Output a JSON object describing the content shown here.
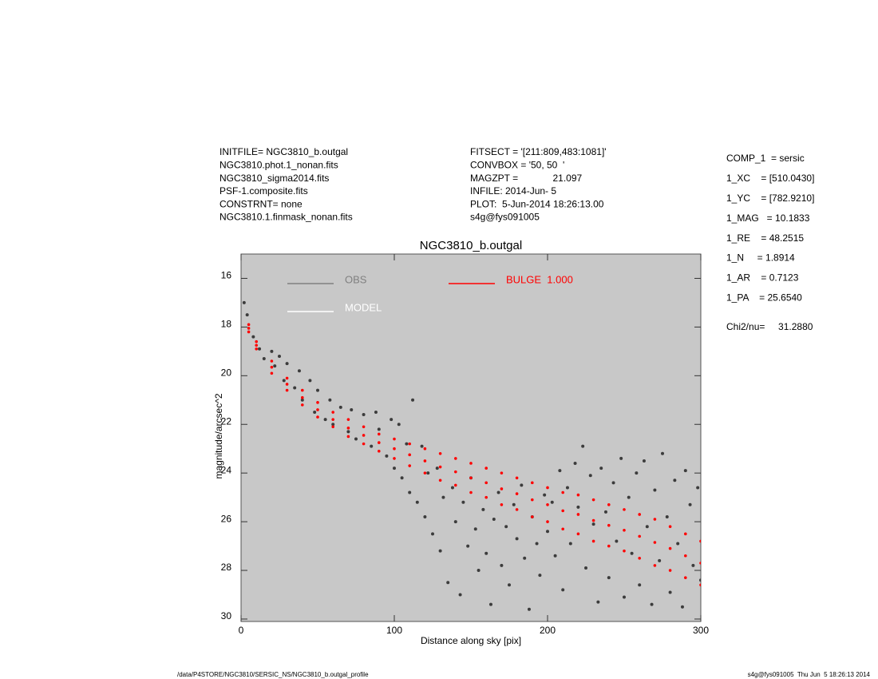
{
  "header": {
    "left": [
      "INITFILE= NGC3810_b.outgal",
      "NGC3810.phot.1_nonan.fits",
      "NGC3810_sigma2014.fits",
      "PSF-1.composite.fits",
      "CONSTRNT= none",
      "NGC3810.1.finmask_nonan.fits"
    ],
    "middle": [
      "FITSECT = '[211:809,483:1081]'",
      "CONVBOX = '50, 50  '",
      "MAGZPT =             21.097",
      "INFILE: 2014-Jun- 5",
      "PLOT:  5-Jun-2014 18:26:13.00",
      "s4g@fys091005"
    ]
  },
  "params": [
    "COMP_1  = sersic",
    "1_XC    = [510.0430]",
    "1_YC    = [782.9210]",
    "1_MAG   = 10.1833",
    "1_RE    = 48.2515",
    "1_N     = 1.8914",
    "1_AR    = 0.7123",
    "1_PA    = 25.6540",
    "Chi2/nu=     31.2880"
  ],
  "footer": {
    "left": "/data/P4STORE/NGC3810/SERSIC_NS/NGC3810_b.outgal_profile",
    "right": "s4g@fys091005  Thu Jun  5 18:26:13 2014"
  },
  "chart_data": {
    "type": "scatter",
    "title": "NGC3810_b.outgal",
    "x_label": "Distance along sky [pix]",
    "y_label": "magnitude/arcsec^2",
    "xlim": [
      0,
      300
    ],
    "xticks": [
      0,
      100,
      200,
      300
    ],
    "ylim": [
      15,
      30.1
    ],
    "yticks": [
      16,
      18,
      20,
      22,
      24,
      26,
      28,
      30
    ],
    "y_inverted": true,
    "grid": false,
    "series": [
      {
        "name": "OBS",
        "color": "#3c3c3c",
        "legend_color": "#808080",
        "x": [
          2,
          4,
          8,
          12,
          15,
          20,
          22,
          25,
          28,
          30,
          35,
          38,
          40,
          45,
          48,
          50,
          55,
          58,
          60,
          65,
          70,
          72,
          75,
          80,
          85,
          88,
          90,
          95,
          98,
          100,
          103,
          105,
          108,
          110,
          112,
          115,
          118,
          120,
          122,
          125,
          128,
          130,
          132,
          135,
          138,
          140,
          143,
          145,
          148,
          150,
          153,
          155,
          158,
          160,
          163,
          165,
          168,
          170,
          173,
          175,
          178,
          180,
          183,
          185,
          188,
          190,
          193,
          195,
          198,
          200,
          203,
          205,
          208,
          210,
          213,
          215,
          218,
          220,
          223,
          225,
          228,
          230,
          233,
          235,
          238,
          240,
          243,
          245,
          248,
          250,
          253,
          255,
          258,
          260,
          263,
          265,
          268,
          270,
          273,
          275,
          278,
          280,
          283,
          285,
          288,
          290,
          293,
          295,
          298,
          300
        ],
        "values": [
          17.0,
          17.5,
          18.4,
          18.9,
          19.3,
          19.0,
          19.6,
          19.2,
          20.2,
          19.5,
          20.5,
          19.8,
          21.0,
          20.2,
          21.5,
          20.6,
          21.8,
          21.0,
          22.0,
          21.3,
          22.3,
          21.4,
          22.6,
          21.6,
          22.9,
          21.5,
          22.2,
          23.3,
          21.8,
          23.8,
          22.0,
          24.2,
          22.8,
          24.8,
          21.0,
          25.2,
          22.9,
          25.8,
          24.0,
          26.5,
          23.8,
          27.2,
          25.0,
          28.5,
          24.6,
          26.0,
          29.0,
          25.2,
          27.0,
          24.2,
          26.3,
          28.0,
          25.5,
          27.3,
          29.4,
          25.9,
          24.8,
          27.8,
          26.2,
          28.6,
          25.3,
          26.7,
          24.5,
          27.5,
          29.6,
          25.8,
          26.9,
          28.2,
          24.9,
          26.4,
          25.2,
          27.4,
          23.9,
          28.8,
          24.6,
          26.9,
          23.6,
          25.4,
          22.9,
          27.9,
          24.1,
          26.1,
          29.3,
          23.8,
          25.6,
          28.3,
          24.4,
          26.8,
          23.4,
          29.1,
          25.0,
          27.3,
          24.0,
          28.6,
          23.5,
          26.2,
          29.4,
          24.7,
          27.6,
          23.2,
          25.8,
          28.9,
          24.3,
          26.9,
          29.5,
          23.9,
          25.3,
          27.8,
          24.6,
          28.4
        ]
      },
      {
        "name": "MODEL",
        "color": "#ffffff",
        "x": [],
        "values": []
      },
      {
        "name": "BULGE  1.000",
        "color": "#ff0000",
        "x": [
          5,
          5,
          5,
          10,
          10,
          10,
          20,
          20,
          20,
          30,
          30,
          30,
          40,
          40,
          40,
          50,
          50,
          50,
          60,
          60,
          60,
          70,
          70,
          70,
          80,
          80,
          80,
          90,
          90,
          90,
          100,
          100,
          100,
          110,
          110,
          110,
          120,
          120,
          120,
          130,
          130,
          130,
          140,
          140,
          140,
          150,
          150,
          150,
          160,
          160,
          160,
          170,
          170,
          170,
          180,
          180,
          180,
          190,
          190,
          190,
          200,
          200,
          200,
          210,
          210,
          210,
          220,
          220,
          220,
          230,
          230,
          230,
          240,
          240,
          240,
          250,
          250,
          250,
          260,
          260,
          260,
          270,
          270,
          270,
          280,
          280,
          280,
          290,
          290,
          290,
          300,
          300,
          300
        ],
        "values": [
          17.9,
          18.05,
          18.2,
          18.6,
          18.75,
          18.9,
          19.4,
          19.65,
          19.9,
          20.1,
          20.35,
          20.6,
          20.6,
          20.9,
          21.2,
          21.1,
          21.4,
          21.7,
          21.5,
          21.8,
          22.1,
          21.8,
          22.15,
          22.5,
          22.1,
          22.45,
          22.8,
          22.4,
          22.75,
          23.1,
          22.6,
          23.0,
          23.4,
          22.8,
          23.25,
          23.7,
          23.0,
          23.5,
          24.0,
          23.2,
          23.75,
          24.3,
          23.4,
          23.95,
          24.5,
          23.6,
          24.2,
          24.8,
          23.8,
          24.4,
          25.0,
          24.0,
          24.65,
          25.3,
          24.2,
          24.85,
          25.5,
          24.4,
          25.1,
          25.8,
          24.6,
          25.3,
          26.0,
          24.8,
          25.55,
          26.3,
          24.9,
          25.7,
          26.5,
          25.1,
          25.95,
          26.8,
          25.3,
          26.15,
          27.0,
          25.5,
          26.35,
          27.2,
          25.7,
          26.6,
          27.5,
          25.9,
          26.85,
          27.8,
          26.2,
          27.1,
          28.0,
          26.5,
          27.4,
          28.3,
          26.8,
          27.7,
          28.6
        ]
      }
    ]
  }
}
